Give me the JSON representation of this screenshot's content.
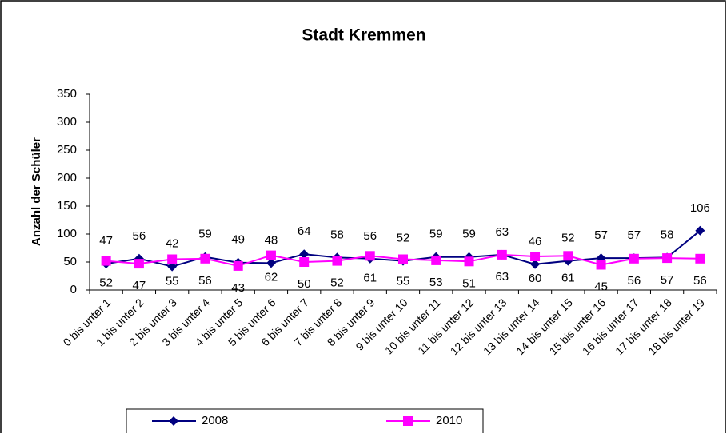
{
  "chart_data": {
    "type": "line",
    "title": "Stadt Kremmen",
    "y_label": "Anzahl der Schüler",
    "categories": [
      "0 bis unter 1",
      "1 bis unter 2",
      "2 bis unter 3",
      "3 bis unter 4",
      "4 bis unter 5",
      "5 bis unter 6",
      "6 bis unter 7",
      "7 bis unter 8",
      "8 bis unter 9",
      "9 bis unter 10",
      "10 bis unter 11",
      "11 bis unter 12",
      "12 bis unter 13",
      "13 bis unter 14",
      "14 bis unter 15",
      "15 bis unter 16",
      "16 bis unter 17",
      "17 bis unter 18",
      "18 bis unter 19"
    ],
    "series": [
      {
        "name": "2008",
        "color": "#000080",
        "marker": "diamond",
        "label_side": "above",
        "values": [
          47,
          56,
          42,
          59,
          49,
          48,
          64,
          58,
          56,
          52,
          59,
          59,
          63,
          46,
          52,
          57,
          57,
          58,
          106
        ]
      },
      {
        "name": "2010",
        "color": "#ff00ff",
        "marker": "square",
        "label_side": "below",
        "values": [
          52,
          47,
          55,
          56,
          43,
          62,
          50,
          52,
          61,
          55,
          53,
          51,
          63,
          60,
          61,
          45,
          56,
          57,
          56
        ]
      }
    ],
    "ylim": [
      0,
      350
    ],
    "yticks": [
      0,
      50,
      100,
      150,
      200,
      250,
      300,
      350
    ],
    "grid": false,
    "legend": "bottom"
  }
}
